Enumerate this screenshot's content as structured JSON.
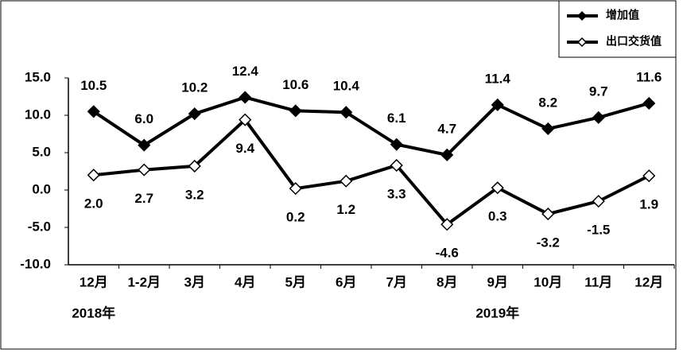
{
  "chart_data": {
    "type": "line",
    "categories": [
      "12月",
      "1-2月",
      "3月",
      "4月",
      "5月",
      "6月",
      "7月",
      "8月",
      "9月",
      "10月",
      "11月",
      "12月"
    ],
    "year_labels": [
      "2018年",
      "2019年"
    ],
    "series": [
      {
        "name": "增加值",
        "color": "#000000",
        "marker": "filled-diamond",
        "values": [
          10.5,
          6.0,
          10.2,
          12.4,
          10.6,
          10.4,
          6.1,
          4.7,
          11.4,
          8.2,
          9.7,
          11.6
        ],
        "value_labels": [
          "10.5",
          "6.0",
          "10.2",
          "12.4",
          "10.6",
          "10.4",
          "6.1",
          "4.7",
          "11.4",
          "8.2",
          "9.7",
          "11.6"
        ]
      },
      {
        "name": "出口交货值",
        "color": "#000000",
        "marker": "open-diamond",
        "values": [
          2.0,
          2.7,
          3.2,
          9.4,
          0.2,
          1.2,
          3.3,
          -4.6,
          0.3,
          -3.2,
          -1.5,
          1.9
        ],
        "value_labels": [
          "2.0",
          "2.7",
          "3.2",
          "9.4",
          "0.2",
          "1.2",
          "3.3",
          "-4.6",
          "0.3",
          "-3.2",
          "-1.5",
          "1.9"
        ]
      }
    ],
    "ylim": [
      -10,
      15
    ],
    "yticks": [
      {
        "value": -10,
        "label": "-10.0"
      },
      {
        "value": -5,
        "label": "-5.0"
      },
      {
        "value": 0,
        "label": "0.0"
      },
      {
        "value": 5,
        "label": "5.0"
      },
      {
        "value": 10,
        "label": "10.0"
      },
      {
        "value": 15,
        "label": "15.0"
      }
    ],
    "grid": false,
    "legend": "top-right"
  }
}
